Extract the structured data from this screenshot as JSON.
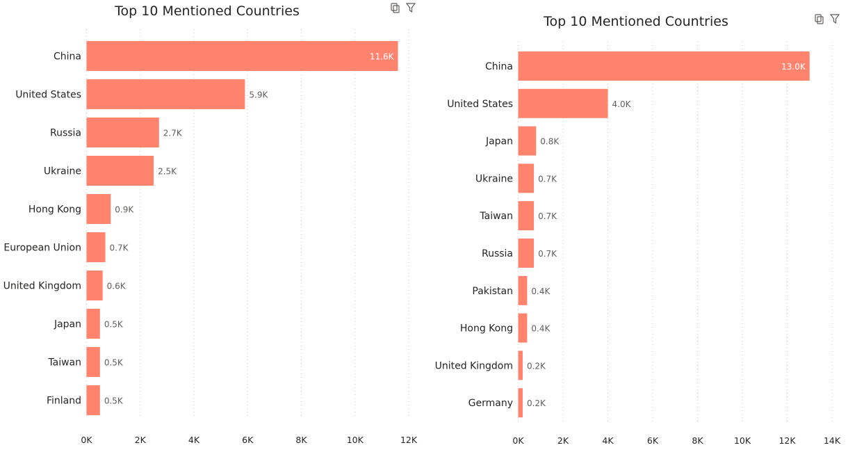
{
  "colors": {
    "bar": "#FF836D",
    "label_inside": "#ffffff",
    "label_outside": "#605E5C",
    "text": "#252423"
  },
  "header_icons": [
    "copy-icon",
    "filter-icon"
  ],
  "charts": [
    {
      "id": "left",
      "chart_data": {
        "type": "bar",
        "orientation": "horizontal",
        "title": "Top 10 Mentioned Countries",
        "categories": [
          "China",
          "United States",
          "Russia",
          "Ukraine",
          "Hong Kong",
          "European Union",
          "United Kingdom",
          "Japan",
          "Taiwan",
          "Finland"
        ],
        "values": [
          11600,
          5900,
          2700,
          2500,
          900,
          700,
          600,
          500,
          500,
          500
        ],
        "data_labels": [
          "11.6K",
          "5.9K",
          "2.7K",
          "2.5K",
          "0.9K",
          "0.7K",
          "0.6K",
          "0.5K",
          "0.5K",
          "0.5K"
        ],
        "xlim": [
          0,
          12000
        ],
        "xticks": [
          0,
          2000,
          4000,
          6000,
          8000,
          10000,
          12000
        ],
        "xtick_labels": [
          "0K",
          "2K",
          "4K",
          "6K",
          "8K",
          "10K",
          "12K"
        ],
        "grid": true
      }
    },
    {
      "id": "right",
      "chart_data": {
        "type": "bar",
        "orientation": "horizontal",
        "title": "Top 10 Mentioned Countries",
        "categories": [
          "China",
          "United States",
          "Japan",
          "Ukraine",
          "Taiwan",
          "Russia",
          "Pakistan",
          "Hong Kong",
          "United Kingdom",
          "Germany"
        ],
        "values": [
          13000,
          4000,
          800,
          700,
          700,
          700,
          400,
          400,
          200,
          200
        ],
        "data_labels": [
          "13.0K",
          "4.0K",
          "0.8K",
          "0.7K",
          "0.7K",
          "0.7K",
          "0.4K",
          "0.4K",
          "0.2K",
          "0.2K"
        ],
        "xlim": [
          0,
          14000
        ],
        "xticks": [
          0,
          2000,
          4000,
          6000,
          8000,
          10000,
          12000,
          14000
        ],
        "xtick_labels": [
          "0K",
          "2K",
          "4K",
          "6K",
          "8K",
          "10K",
          "12K",
          "14K"
        ],
        "grid": true
      }
    }
  ]
}
